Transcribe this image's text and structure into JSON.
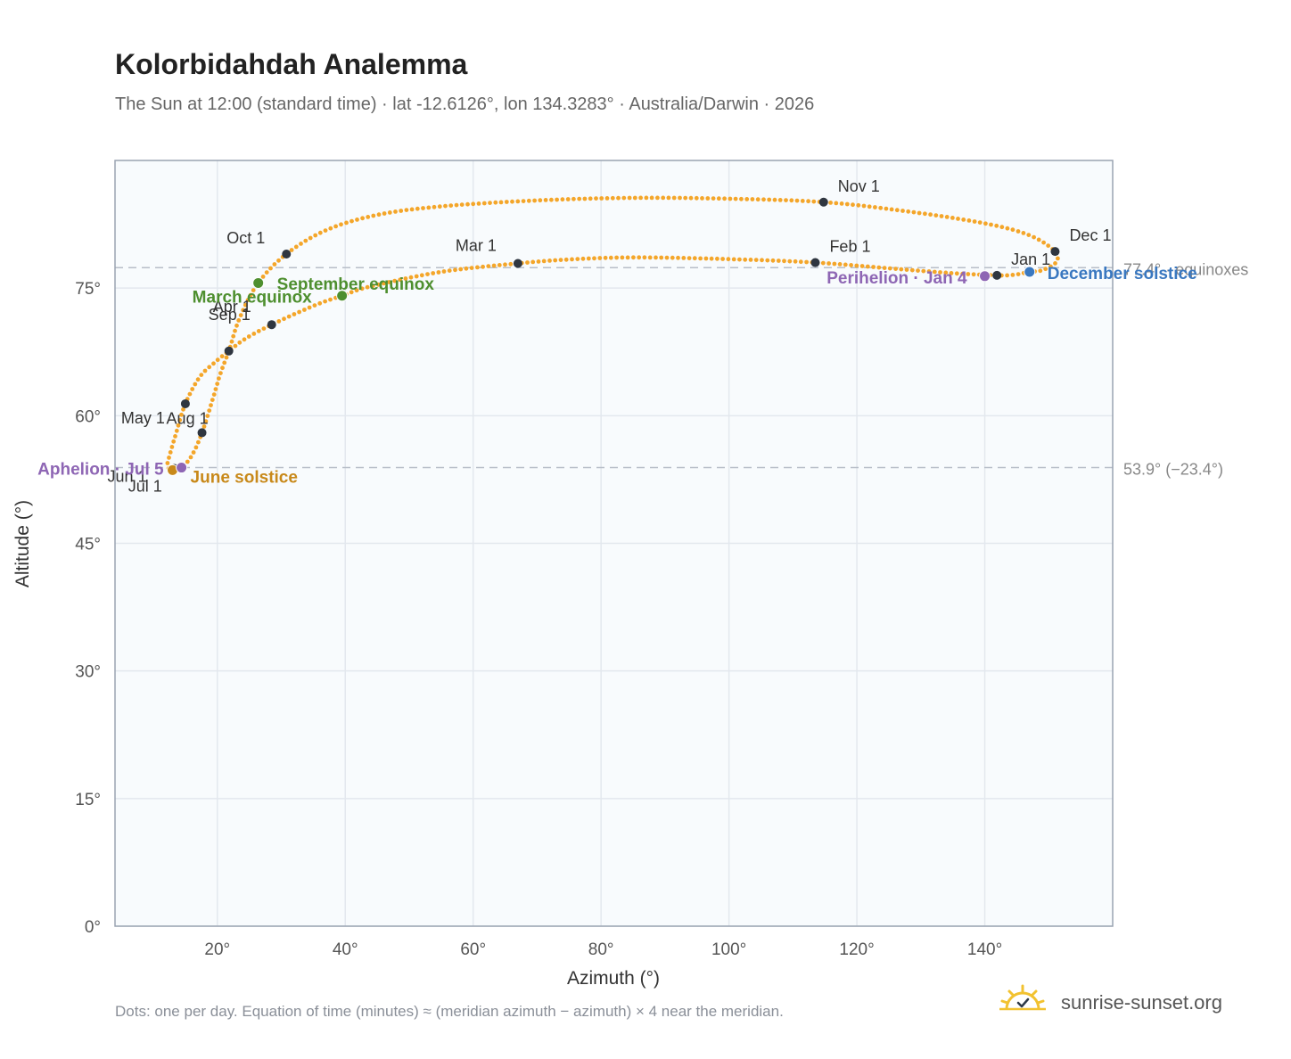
{
  "header": {
    "title": "Kolorbidahdah Analemma",
    "subtitle": "The Sun at 12:00 (standard time) · lat -12.6126°, lon 134.3283° · Australia/Darwin · 2026"
  },
  "footer": {
    "note": "Dots: one per day. Equation of time (minutes) ≈ (meridian azimuth − azimuth) × 4 near the meridian.",
    "brand": "sunrise-sunset.org",
    "brand_icon": "sun-logo-icon"
  },
  "colors": {
    "curve": "#f4a62a",
    "month_marker": "#2f3640",
    "equinox": "#4e8f2f",
    "june_solstice": "#c8891a",
    "december_solstice": "#3a78c0",
    "apsis": "#8e66b4",
    "plot_bg": "#f8fbfd",
    "grid": "#e3e8ee",
    "frame": "#9aa4b2",
    "reference_line": "#b7bec8"
  },
  "chart_data": {
    "type": "scatter",
    "xlabel": "Azimuth (°)",
    "ylabel": "Altitude (°)",
    "xlim": [
      4,
      160
    ],
    "ylim": [
      0,
      90
    ],
    "xticks": [
      20,
      40,
      60,
      80,
      100,
      120,
      140
    ],
    "yticks": [
      0,
      15,
      30,
      45,
      60,
      75
    ],
    "grid": true,
    "legend": "none",
    "reference_lines": [
      {
        "y": 77.4,
        "label": "77.4° · equinoxes"
      },
      {
        "y": 53.9,
        "label": "53.9° (−23.4°)"
      }
    ],
    "month_markers": [
      {
        "label": "Jan 1",
        "az": 141.9,
        "alt": 76.5
      },
      {
        "label": "Feb 1",
        "az": 113.5,
        "alt": 78.0
      },
      {
        "label": "Mar 1",
        "az": 67.0,
        "alt": 77.9
      },
      {
        "label": "Apr 1",
        "az": 28.5,
        "alt": 70.7
      },
      {
        "label": "May 1",
        "az": 15.0,
        "alt": 61.4
      },
      {
        "label": "Jun 1",
        "az": 13.0,
        "alt": 53.7
      },
      {
        "label": "Jul 1",
        "az": 13.3,
        "alt": 53.8
      },
      {
        "label": "Aug 1",
        "az": 17.6,
        "alt": 58.0
      },
      {
        "label": "Sep 1",
        "az": 21.8,
        "alt": 67.6
      },
      {
        "label": "Oct 1",
        "az": 30.8,
        "alt": 79.0
      },
      {
        "label": "Nov 1",
        "az": 114.8,
        "alt": 85.1
      },
      {
        "label": "Dec 1",
        "az": 151.0,
        "alt": 79.3
      }
    ],
    "events": [
      {
        "label": "March equinox",
        "az": 26.4,
        "alt": 75.6,
        "color_key": "equinox"
      },
      {
        "label": "September equinox",
        "az": 39.5,
        "alt": 74.1,
        "color_key": "equinox"
      },
      {
        "label": "June solstice",
        "az": 13.0,
        "alt": 53.6,
        "color_key": "june_solstice"
      },
      {
        "label": "December solstice",
        "az": 147.0,
        "alt": 76.9,
        "color_key": "december_solstice"
      },
      {
        "label": "Perihelion · Jan 4",
        "az": 140.0,
        "alt": 76.4,
        "color_key": "apsis"
      },
      {
        "label": "Aphelion · Jul 5",
        "az": 14.4,
        "alt": 53.9,
        "color_key": "apsis"
      }
    ],
    "path": [
      [
        143.5,
        76.5
      ],
      [
        141.9,
        76.5
      ],
      [
        136.0,
        76.7
      ],
      [
        127.0,
        77.2
      ],
      [
        113.5,
        78.0
      ],
      [
        100.0,
        78.4
      ],
      [
        86.0,
        78.6
      ],
      [
        76.0,
        78.4
      ],
      [
        67.0,
        77.9
      ],
      [
        55.0,
        76.9
      ],
      [
        44.0,
        75.2
      ],
      [
        39.5,
        74.1
      ],
      [
        35.0,
        72.9
      ],
      [
        28.5,
        70.7
      ],
      [
        24.5,
        69.1
      ],
      [
        21.8,
        67.6
      ],
      [
        19.5,
        66.2
      ],
      [
        17.2,
        64.5
      ],
      [
        15.0,
        61.4
      ],
      [
        13.5,
        57.8
      ],
      [
        12.6,
        55.5
      ],
      [
        12.2,
        54.1
      ],
      [
        13.0,
        53.6
      ],
      [
        14.4,
        53.9
      ],
      [
        16.0,
        55.3
      ],
      [
        17.6,
        58.0
      ],
      [
        19.3,
        62.0
      ],
      [
        20.5,
        65.0
      ],
      [
        21.8,
        67.6
      ],
      [
        23.5,
        71.5
      ],
      [
        26.4,
        75.6
      ],
      [
        30.8,
        79.0
      ],
      [
        37.0,
        81.8
      ],
      [
        45.0,
        83.6
      ],
      [
        55.0,
        84.6
      ],
      [
        70.0,
        85.3
      ],
      [
        85.0,
        85.6
      ],
      [
        100.0,
        85.5
      ],
      [
        114.8,
        85.1
      ],
      [
        128.0,
        84.0
      ],
      [
        140.0,
        82.6
      ],
      [
        147.0,
        81.2
      ],
      [
        151.0,
        79.3
      ],
      [
        151.1,
        78.0
      ],
      [
        149.0,
        77.1
      ],
      [
        147.0,
        76.9
      ],
      [
        145.0,
        76.6
      ],
      [
        143.5,
        76.5
      ]
    ]
  }
}
